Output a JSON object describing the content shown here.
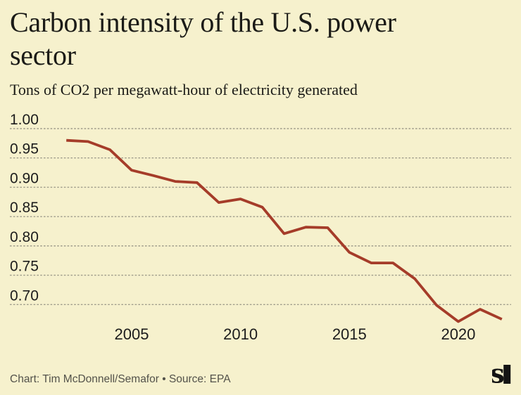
{
  "header": {
    "title_lines": [
      "Carbon intensity of the U.S. power",
      "sector"
    ],
    "title": "Carbon intensity of the U.S. power sector",
    "subtitle": "Tons of CO2 per megawatt-hour of electricity generated"
  },
  "chart_data": {
    "type": "line",
    "title": "Carbon intensity of the U.S. power sector",
    "subtitle": "Tons of CO2 per megawatt-hour of electricity generated",
    "series": [
      {
        "name": "Tons of CO2 per megawatt-hour",
        "values": [
          0.98,
          0.978,
          0.964,
          0.929,
          0.92,
          0.91,
          0.908,
          0.874,
          0.88,
          0.866,
          0.821,
          0.832,
          0.831,
          0.789,
          0.771,
          0.771,
          0.744,
          0.699,
          0.671,
          0.692,
          0.675
        ]
      }
    ],
    "x": [
      2002,
      2003,
      2004,
      2005,
      2006,
      2007,
      2008,
      2009,
      2010,
      2011,
      2012,
      2013,
      2014,
      2015,
      2016,
      2017,
      2018,
      2019,
      2020,
      2021,
      2022
    ],
    "xticks": [
      2005,
      2010,
      2015,
      2020
    ],
    "xtick_labels": [
      "2005",
      "2010",
      "2015",
      "2020"
    ],
    "yticks": [
      1.0,
      0.95,
      0.9,
      0.85,
      0.8,
      0.75,
      0.7
    ],
    "ytick_labels": [
      "1.00",
      "0.95",
      "0.90",
      "0.85",
      "0.80",
      "0.75",
      "0.70"
    ],
    "ylim": [
      0.7,
      1.0
    ],
    "xlabel": "",
    "ylabel": "Tons of CO2 per megawatt-hour of electricity generated",
    "grid": "horizontal-dotted",
    "legend": "none",
    "line_color": "#a53c29"
  },
  "colors": {
    "background": "#f6f1cd",
    "text": "#1b1b17",
    "tick_text": "#1c1c1c",
    "gridline": "#a09d8c",
    "line": "#a53c29",
    "footer_text": "#53524a",
    "logo": "#141414"
  },
  "footer": {
    "credit": "Chart: Tim McDonnell/Semafor • Source: EPA"
  },
  "logo": {
    "name": "Semafor",
    "letter": "s"
  }
}
